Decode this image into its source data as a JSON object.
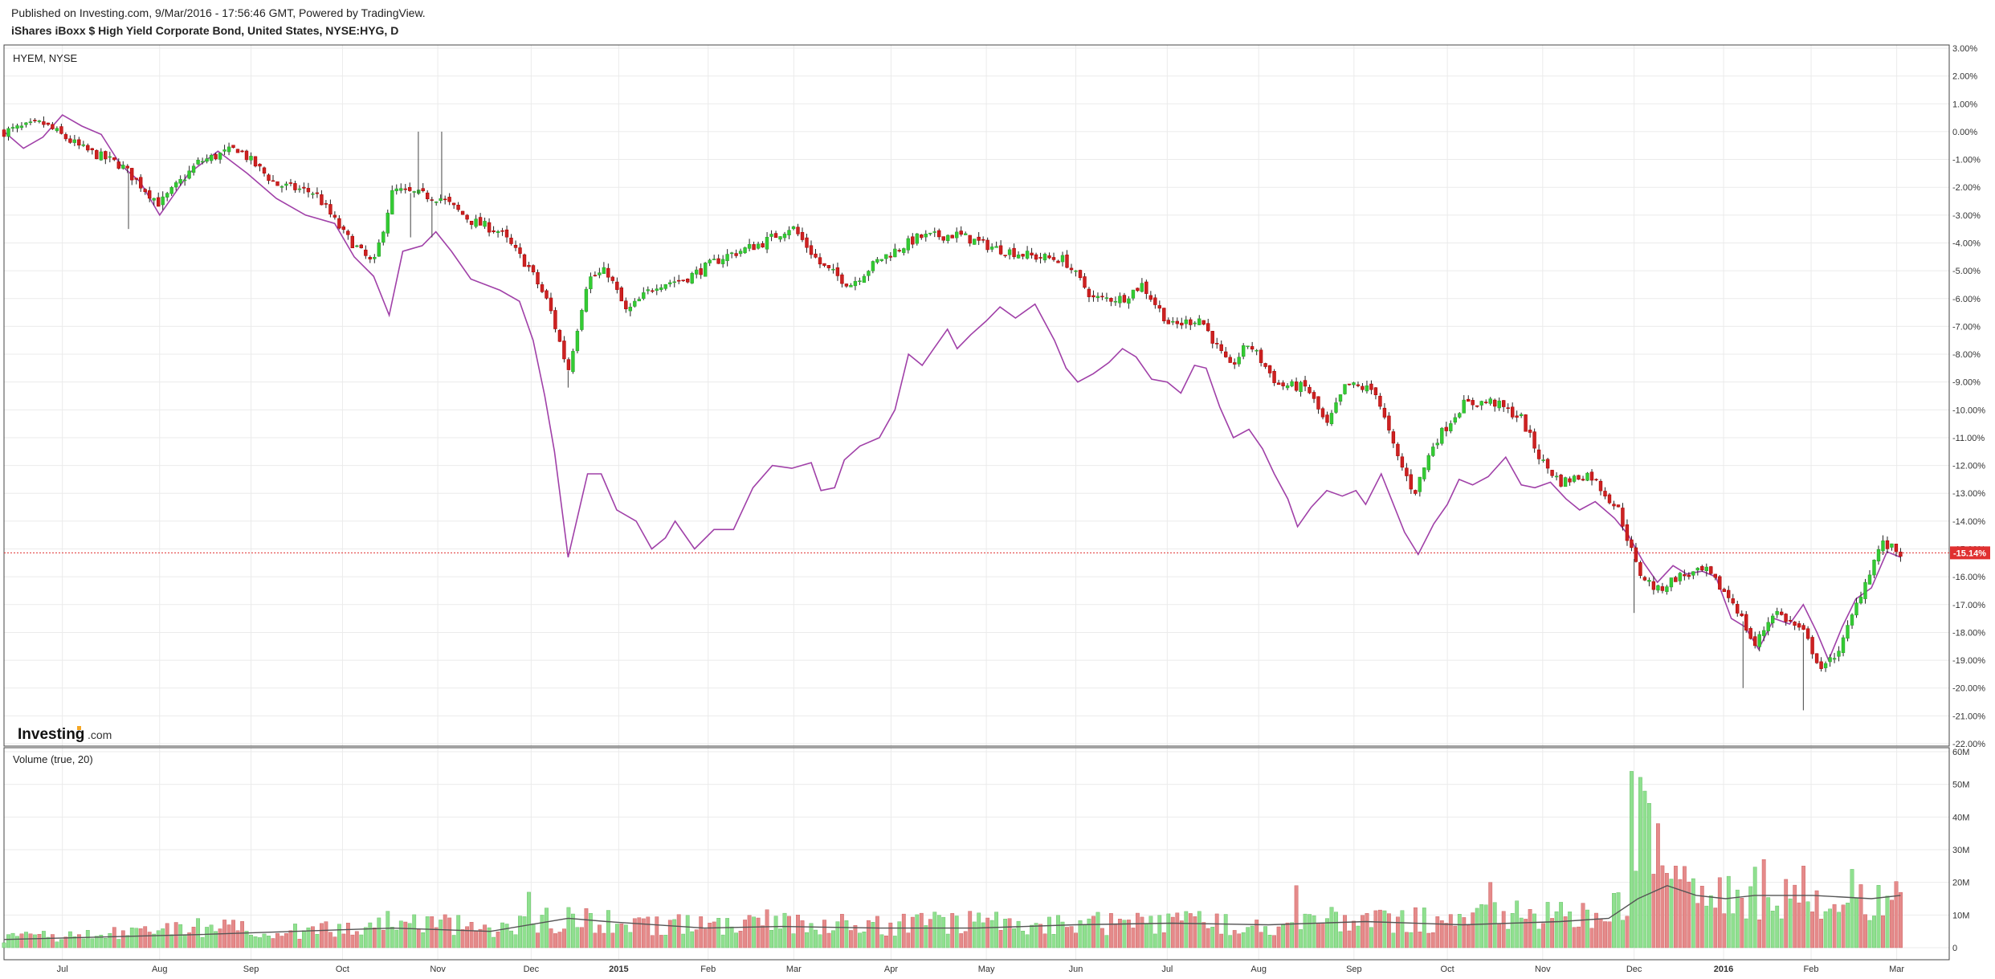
{
  "header": {
    "published": "Published on Investing.com, 9/Mar/2016 - 17:56:46 GMT, Powered by TradingView.",
    "symbol_title": "iShares iBoxx $ High Yield Corporate Bond, United States, NYSE:HYG, D"
  },
  "main_pane": {
    "label": "HYEM, NYSE",
    "logo_main": "Investing",
    "logo_domain": ".com",
    "current_tag": "-15.14%"
  },
  "volume_pane": {
    "label": "Volume (true, 20)"
  },
  "colors": {
    "up": "#2ea32e",
    "up_fill": "#33cc33",
    "down": "#b30000",
    "down_fill": "#cc2222",
    "compare_line": "#a040a8",
    "vol_up": "#8fe08f",
    "vol_down": "#e58a8a",
    "vol_ma": "#555555",
    "grid": "#ebebeb",
    "price_line": "#e03030"
  },
  "chart_data": [
    {
      "type": "candlestick",
      "title": "iShares iBoxx $ High Yield Corporate Bond, United States, NYSE:HYG, D",
      "compare_series_name": "HYEM, NYSE",
      "ylim": [
        -22,
        3
      ],
      "y_ticks": [
        "3.00%",
        "2.00%",
        "1.00%",
        "0.00%",
        "-1.00%",
        "-2.00%",
        "-3.00%",
        "-4.00%",
        "-5.00%",
        "-6.00%",
        "-7.00%",
        "-8.00%",
        "-9.00%",
        "-10.00%",
        "-11.00%",
        "-12.00%",
        "-13.00%",
        "-14.00%",
        "-15.00%",
        "-16.00%",
        "-17.00%",
        "-18.00%",
        "-19.00%",
        "-20.00%",
        "-21.00%",
        "-22.00%"
      ],
      "y_tick_values": [
        3,
        2,
        1,
        0,
        -1,
        -2,
        -3,
        -4,
        -5,
        -6,
        -7,
        -8,
        -9,
        -10,
        -11,
        -12,
        -13,
        -14,
        -15,
        -16,
        -17,
        -18,
        -19,
        -20,
        -21,
        -22
      ],
      "x_ticks": [
        "Jul",
        "Aug",
        "Sep",
        "Oct",
        "Nov",
        "Dec",
        "2015",
        "Feb",
        "Mar",
        "Apr",
        "May",
        "Jun",
        "Jul",
        "Aug",
        "Sep",
        "Oct",
        "Nov",
        "Dec",
        "2016",
        "Feb",
        "Mar"
      ],
      "x_tick_bold": [
        "2015",
        "2016"
      ],
      "x_tick_positions": [
        0.03,
        0.08,
        0.127,
        0.174,
        0.223,
        0.271,
        0.316,
        0.362,
        0.406,
        0.456,
        0.505,
        0.551,
        0.598,
        0.645,
        0.694,
        0.742,
        0.791,
        0.838,
        0.884,
        0.929,
        0.973
      ],
      "current_value": -15.14,
      "hyg_anchors": [
        [
          0,
          0
        ],
        [
          0.02,
          0.3
        ],
        [
          0.04,
          -0.6
        ],
        [
          0.06,
          -1.2
        ],
        [
          0.08,
          -2.6
        ],
        [
          0.1,
          -1.1
        ],
        [
          0.12,
          -0.6
        ],
        [
          0.14,
          -1.9
        ],
        [
          0.16,
          -2.2
        ],
        [
          0.175,
          -3.7
        ],
        [
          0.19,
          -4.8
        ],
        [
          0.2,
          -2.1
        ],
        [
          0.225,
          -2.4
        ],
        [
          0.24,
          -3.2
        ],
        [
          0.255,
          -3.6
        ],
        [
          0.27,
          -4.9
        ],
        [
          0.28,
          -6.2
        ],
        [
          0.29,
          -8.6
        ],
        [
          0.3,
          -5.3
        ],
        [
          0.31,
          -5.0
        ],
        [
          0.32,
          -6.5
        ],
        [
          0.335,
          -5.5
        ],
        [
          0.35,
          -5.3
        ],
        [
          0.37,
          -4.5
        ],
        [
          0.39,
          -4.0
        ],
        [
          0.405,
          -3.4
        ],
        [
          0.42,
          -4.8
        ],
        [
          0.435,
          -5.5
        ],
        [
          0.45,
          -4.6
        ],
        [
          0.47,
          -3.8
        ],
        [
          0.49,
          -3.7
        ],
        [
          0.51,
          -4.2
        ],
        [
          0.53,
          -4.5
        ],
        [
          0.545,
          -4.6
        ],
        [
          0.56,
          -6.0
        ],
        [
          0.575,
          -6.0
        ],
        [
          0.585,
          -5.5
        ],
        [
          0.6,
          -7.0
        ],
        [
          0.615,
          -6.7
        ],
        [
          0.63,
          -8.5
        ],
        [
          0.64,
          -7.6
        ],
        [
          0.655,
          -9.1
        ],
        [
          0.67,
          -9.2
        ],
        [
          0.68,
          -10.6
        ],
        [
          0.69,
          -9.1
        ],
        [
          0.705,
          -9.3
        ],
        [
          0.715,
          -11.5
        ],
        [
          0.725,
          -13.0
        ],
        [
          0.735,
          -11.2
        ],
        [
          0.75,
          -9.8
        ],
        [
          0.765,
          -9.7
        ],
        [
          0.78,
          -10.3
        ],
        [
          0.79,
          -11.8
        ],
        [
          0.8,
          -12.6
        ],
        [
          0.815,
          -12.3
        ],
        [
          0.83,
          -13.6
        ],
        [
          0.84,
          -15.8
        ],
        [
          0.85,
          -16.5
        ],
        [
          0.86,
          -16.0
        ],
        [
          0.875,
          -15.8
        ],
        [
          0.89,
          -17.0
        ],
        [
          0.9,
          -18.5
        ],
        [
          0.91,
          -17.2
        ],
        [
          0.925,
          -18.0
        ],
        [
          0.935,
          -19.4
        ],
        [
          0.945,
          -18.4
        ],
        [
          0.955,
          -16.5
        ],
        [
          0.965,
          -14.8
        ],
        [
          0.975,
          -15.14
        ]
      ],
      "hyem_anchors": [
        [
          0,
          0
        ],
        [
          0.01,
          -0.6
        ],
        [
          0.02,
          -0.2
        ],
        [
          0.03,
          0.6
        ],
        [
          0.04,
          0.2
        ],
        [
          0.05,
          -0.1
        ],
        [
          0.06,
          -1.2
        ],
        [
          0.07,
          -1.8
        ],
        [
          0.08,
          -3.0
        ],
        [
          0.095,
          -1.5
        ],
        [
          0.11,
          -0.7
        ],
        [
          0.125,
          -1.5
        ],
        [
          0.14,
          -2.4
        ],
        [
          0.155,
          -3.0
        ],
        [
          0.17,
          -3.3
        ],
        [
          0.18,
          -4.5
        ],
        [
          0.19,
          -5.2
        ],
        [
          0.198,
          -6.6
        ],
        [
          0.205,
          -4.3
        ],
        [
          0.215,
          -4.1
        ],
        [
          0.222,
          -3.6
        ],
        [
          0.23,
          -4.3
        ],
        [
          0.24,
          -5.3
        ],
        [
          0.255,
          -5.7
        ],
        [
          0.265,
          -6.1
        ],
        [
          0.272,
          -7.5
        ],
        [
          0.278,
          -9.5
        ],
        [
          0.283,
          -11.5
        ],
        [
          0.29,
          -15.3
        ],
        [
          0.296,
          -13.5
        ],
        [
          0.3,
          -12.3
        ],
        [
          0.307,
          -12.3
        ],
        [
          0.315,
          -13.6
        ],
        [
          0.325,
          -14.0
        ],
        [
          0.333,
          -15.0
        ],
        [
          0.34,
          -14.6
        ],
        [
          0.345,
          -14.0
        ],
        [
          0.355,
          -15.0
        ],
        [
          0.365,
          -14.3
        ],
        [
          0.375,
          -14.3
        ],
        [
          0.385,
          -12.8
        ],
        [
          0.395,
          -12.0
        ],
        [
          0.405,
          -12.1
        ],
        [
          0.415,
          -11.9
        ],
        [
          0.42,
          -12.9
        ],
        [
          0.427,
          -12.8
        ],
        [
          0.432,
          -11.8
        ],
        [
          0.44,
          -11.3
        ],
        [
          0.45,
          -11.0
        ],
        [
          0.458,
          -10.0
        ],
        [
          0.465,
          -8.0
        ],
        [
          0.472,
          -8.4
        ],
        [
          0.478,
          -7.8
        ],
        [
          0.485,
          -7.1
        ],
        [
          0.49,
          -7.8
        ],
        [
          0.497,
          -7.3
        ],
        [
          0.505,
          -6.8
        ],
        [
          0.512,
          -6.3
        ],
        [
          0.52,
          -6.7
        ],
        [
          0.53,
          -6.2
        ],
        [
          0.54,
          -7.5
        ],
        [
          0.546,
          -8.5
        ],
        [
          0.552,
          -9.0
        ],
        [
          0.56,
          -8.7
        ],
        [
          0.568,
          -8.3
        ],
        [
          0.575,
          -7.8
        ],
        [
          0.582,
          -8.1
        ],
        [
          0.59,
          -8.9
        ],
        [
          0.598,
          -9.0
        ],
        [
          0.605,
          -9.4
        ],
        [
          0.612,
          -8.4
        ],
        [
          0.618,
          -8.5
        ],
        [
          0.625,
          -9.9
        ],
        [
          0.632,
          -11.0
        ],
        [
          0.64,
          -10.7
        ],
        [
          0.647,
          -11.4
        ],
        [
          0.653,
          -12.3
        ],
        [
          0.66,
          -13.2
        ],
        [
          0.665,
          -14.2
        ],
        [
          0.672,
          -13.5
        ],
        [
          0.68,
          -12.9
        ],
        [
          0.688,
          -13.1
        ],
        [
          0.695,
          -12.9
        ],
        [
          0.7,
          -13.4
        ],
        [
          0.708,
          -12.3
        ],
        [
          0.712,
          -13.0
        ],
        [
          0.72,
          -14.4
        ],
        [
          0.727,
          -15.2
        ],
        [
          0.735,
          -14.1
        ],
        [
          0.742,
          -13.4
        ],
        [
          0.748,
          -12.5
        ],
        [
          0.755,
          -12.7
        ],
        [
          0.763,
          -12.4
        ],
        [
          0.772,
          -11.7
        ],
        [
          0.78,
          -12.7
        ],
        [
          0.787,
          -12.8
        ],
        [
          0.795,
          -12.6
        ],
        [
          0.803,
          -13.2
        ],
        [
          0.81,
          -13.6
        ],
        [
          0.818,
          -13.3
        ],
        [
          0.828,
          -13.9
        ],
        [
          0.835,
          -14.5
        ],
        [
          0.843,
          -15.5
        ],
        [
          0.85,
          -16.2
        ],
        [
          0.858,
          -15.6
        ],
        [
          0.865,
          -15.9
        ],
        [
          0.873,
          -15.8
        ],
        [
          0.88,
          -16.0
        ],
        [
          0.888,
          -17.5
        ],
        [
          0.895,
          -17.8
        ],
        [
          0.902,
          -18.6
        ],
        [
          0.91,
          -17.5
        ],
        [
          0.918,
          -17.7
        ],
        [
          0.925,
          -17.0
        ],
        [
          0.932,
          -18.0
        ],
        [
          0.938,
          -19.0
        ],
        [
          0.945,
          -17.8
        ],
        [
          0.952,
          -16.8
        ],
        [
          0.96,
          -16.4
        ],
        [
          0.968,
          -15.1
        ],
        [
          0.975,
          -15.3
        ]
      ],
      "spikes": [
        [
          0.209,
          -3.8
        ],
        [
          0.22,
          -3.8
        ],
        [
          0.064,
          -3.5
        ],
        [
          0.29,
          -9.2
        ],
        [
          0.838,
          -17.3
        ],
        [
          0.894,
          -20.0
        ],
        [
          0.925,
          -20.8
        ]
      ]
    },
    {
      "type": "bar",
      "title": "Volume (true, 20)",
      "ylim": [
        0,
        60
      ],
      "y_ticks": [
        "60M",
        "50M",
        "40M",
        "30M",
        "20M",
        "10M",
        "0"
      ],
      "y_tick_values": [
        60,
        50,
        40,
        30,
        20,
        10,
        0
      ],
      "unit": "M",
      "vol_anchors": [
        [
          0,
          3
        ],
        [
          0.05,
          4
        ],
        [
          0.1,
          6
        ],
        [
          0.15,
          5
        ],
        [
          0.2,
          8
        ],
        [
          0.25,
          6
        ],
        [
          0.29,
          9
        ],
        [
          0.32,
          7
        ],
        [
          0.36,
          7
        ],
        [
          0.4,
          8
        ],
        [
          0.45,
          7
        ],
        [
          0.5,
          8
        ],
        [
          0.55,
          7
        ],
        [
          0.6,
          8
        ],
        [
          0.65,
          7
        ],
        [
          0.7,
          9
        ],
        [
          0.74,
          8
        ],
        [
          0.78,
          10
        ],
        [
          0.82,
          9
        ],
        [
          0.835,
          14
        ],
        [
          0.84,
          40
        ],
        [
          0.855,
          20
        ],
        [
          0.87,
          15
        ],
        [
          0.89,
          18
        ],
        [
          0.91,
          16
        ],
        [
          0.93,
          15
        ],
        [
          0.95,
          14
        ],
        [
          0.975,
          15
        ]
      ],
      "vol_peaks": [
        [
          0.836,
          54
        ],
        [
          0.843,
          42
        ],
        [
          0.85,
          38
        ],
        [
          0.86,
          25
        ],
        [
          0.905,
          27
        ],
        [
          0.925,
          25
        ],
        [
          0.95,
          24
        ],
        [
          0.27,
          17
        ],
        [
          0.665,
          19
        ],
        [
          0.765,
          20
        ]
      ],
      "ma_anchors": [
        [
          0,
          2.5
        ],
        [
          0.1,
          4
        ],
        [
          0.2,
          6
        ],
        [
          0.25,
          5
        ],
        [
          0.29,
          9
        ],
        [
          0.31,
          8
        ],
        [
          0.36,
          6
        ],
        [
          0.4,
          6.5
        ],
        [
          0.45,
          6
        ],
        [
          0.5,
          6
        ],
        [
          0.55,
          7
        ],
        [
          0.6,
          7.5
        ],
        [
          0.65,
          7
        ],
        [
          0.7,
          8
        ],
        [
          0.75,
          7
        ],
        [
          0.8,
          8
        ],
        [
          0.825,
          9
        ],
        [
          0.84,
          15
        ],
        [
          0.855,
          19
        ],
        [
          0.87,
          16
        ],
        [
          0.885,
          15
        ],
        [
          0.9,
          16
        ],
        [
          0.93,
          16
        ],
        [
          0.96,
          15
        ],
        [
          0.975,
          16
        ]
      ]
    }
  ]
}
